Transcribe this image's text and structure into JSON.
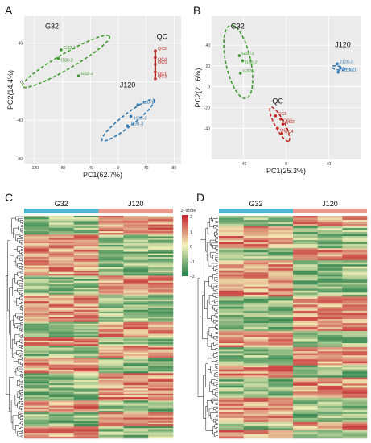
{
  "panel_letters": {
    "a": "A",
    "b": "B",
    "c": "C",
    "d": "D"
  },
  "colors": {
    "G32": "#3f9a2e",
    "QC": "#c42a24",
    "J120": "#2f78b3",
    "bar_G32": "#4cb8d2",
    "bar_J120": "#e99a8e",
    "heat_low": "#1e7a43",
    "heat_mid": "#f3f1b9",
    "heat_high": "#c2222b"
  },
  "legend": {
    "title": "Z−score",
    "ticks": [
      "2",
      "1",
      "0",
      "−1",
      "−2"
    ]
  },
  "chart_data": [
    {
      "id": "A",
      "type": "scatter",
      "xlabel": "PC1(62.7%)",
      "ylabel": "PC2(14.4%)",
      "xlim": [
        -135,
        90
      ],
      "ylim": [
        -85,
        68
      ],
      "xticks": [
        "-120",
        "-80",
        "-40",
        "0",
        "40",
        "80"
      ],
      "xtick_values": [
        -120,
        -80,
        -40,
        0,
        40,
        80
      ],
      "yticks": [
        "40",
        "0",
        "-40",
        "-80"
      ],
      "ytick_values": [
        40,
        0,
        -40,
        -80
      ],
      "groups": [
        {
          "name": "G32",
          "color_key": "G32",
          "points": [
            {
              "label": "G32-1",
              "x": -82,
              "y": 33
            },
            {
              "label": "G32-3",
              "x": -86,
              "y": 24
            },
            {
              "label": "G32-2",
              "x": -57,
              "y": 6
            }
          ],
          "ellipse": {
            "cx": -75,
            "cy": 21,
            "rx": 58,
            "ry": 9,
            "angle": 30
          }
        },
        {
          "name": "QC",
          "color_key": "QC",
          "points": [
            {
              "label": "QC2",
              "x": 53,
              "y": 32
            },
            {
              "label": "QC4",
              "x": 53,
              "y": 25
            },
            {
              "label": "QC5",
              "x": 53,
              "y": 18
            },
            {
              "label": "QC1",
              "x": 53,
              "y": 10
            },
            {
              "label": "QC3",
              "x": 53,
              "y": 3
            }
          ],
          "ellipse": null
        },
        {
          "name": "J120",
          "color_key": "J120",
          "points": [
            {
              "label": "J120-1",
              "x": 28,
              "y": -24
            },
            {
              "label": "J120-2",
              "x": 18,
              "y": -36
            },
            {
              "label": "J120-3",
              "x": 13,
              "y": -46
            }
          ],
          "ellipse": {
            "cx": 14,
            "cy": -40,
            "rx": 38,
            "ry": 7,
            "angle": 38
          }
        }
      ],
      "group_labels": [
        {
          "text": "G32",
          "x": -105,
          "y": 55
        },
        {
          "text": "QC",
          "x": 55,
          "y": 44
        },
        {
          "text": "J120",
          "x": 2,
          "y": -6
        }
      ]
    },
    {
      "id": "B",
      "type": "scatter",
      "xlabel": "PC1(25.3%)",
      "ylabel": "PC2(21.6%)",
      "xlim": [
        -70,
        70
      ],
      "ylim": [
        -70,
        68
      ],
      "xticks": [
        "-40",
        "0",
        "40"
      ],
      "xtick_values": [
        -40,
        0,
        40
      ],
      "yticks": [
        "40",
        "20",
        "0",
        "-20",
        "-40"
      ],
      "ytick_values": [
        40,
        20,
        0,
        -20,
        -40
      ],
      "groups": [
        {
          "name": "G32",
          "color_key": "G32",
          "points": [
            {
              "label": "G32-3",
              "x": -44,
              "y": 30
            },
            {
              "label": "G32-2",
              "x": -41,
              "y": 25
            },
            {
              "label": "G32-1",
              "x": -43,
              "y": 13
            }
          ],
          "ellipse": {
            "cx": -45,
            "cy": 24,
            "rx": 13,
            "ry": 39,
            "angle": 12
          }
        },
        {
          "name": "QC",
          "color_key": "QC",
          "points": [
            {
              "label": "QC5",
              "x": -10,
              "y": -28
            },
            {
              "label": "QC2",
              "x": -5,
              "y": -31
            },
            {
              "label": "QC3",
              "x": -3,
              "y": -36
            },
            {
              "label": "QC1",
              "x": -8,
              "y": -40
            },
            {
              "label": "QC4",
              "x": -4,
              "y": -45
            }
          ],
          "ellipse": {
            "cx": -6,
            "cy": -36,
            "rx": 20,
            "ry": 5,
            "angle": -62
          }
        },
        {
          "name": "J120",
          "color_key": "J120",
          "points": [
            {
              "label": "J120-3",
              "x": 48,
              "y": 22
            },
            {
              "label": "J120-1",
              "x": 51,
              "y": 18
            },
            {
              "label": "J120-2",
              "x": 49,
              "y": 14
            }
          ],
          "ellipse": {
            "cx": 49,
            "cy": 18,
            "rx": 7,
            "ry": 2,
            "angle": -10
          }
        }
      ],
      "group_labels": [
        {
          "text": "G32",
          "x": -52,
          "y": 56
        },
        {
          "text": "QC",
          "x": -13,
          "y": -16
        },
        {
          "text": "J120",
          "x": 46,
          "y": 38
        }
      ]
    },
    {
      "id": "C",
      "type": "heatmap",
      "columns": [
        "G32",
        "G32",
        "G32",
        "J120",
        "J120",
        "J120"
      ],
      "col_groups": [
        {
          "name": "G32",
          "count": 3,
          "color_key": "bar_G32"
        },
        {
          "name": "J120",
          "count": 3,
          "color_key": "bar_J120"
        }
      ],
      "n_rows": 130,
      "seed": 7,
      "value_range": [
        -2,
        2
      ]
    },
    {
      "id": "D",
      "type": "heatmap",
      "columns": [
        "G32",
        "G32",
        "G32",
        "J120",
        "J120",
        "J120"
      ],
      "col_groups": [
        {
          "name": "G32",
          "count": 3,
          "color_key": "bar_G32"
        },
        {
          "name": "J120",
          "count": 3,
          "color_key": "bar_J120"
        }
      ],
      "n_rows": 110,
      "seed": 23,
      "value_range": [
        -2,
        2
      ]
    }
  ]
}
